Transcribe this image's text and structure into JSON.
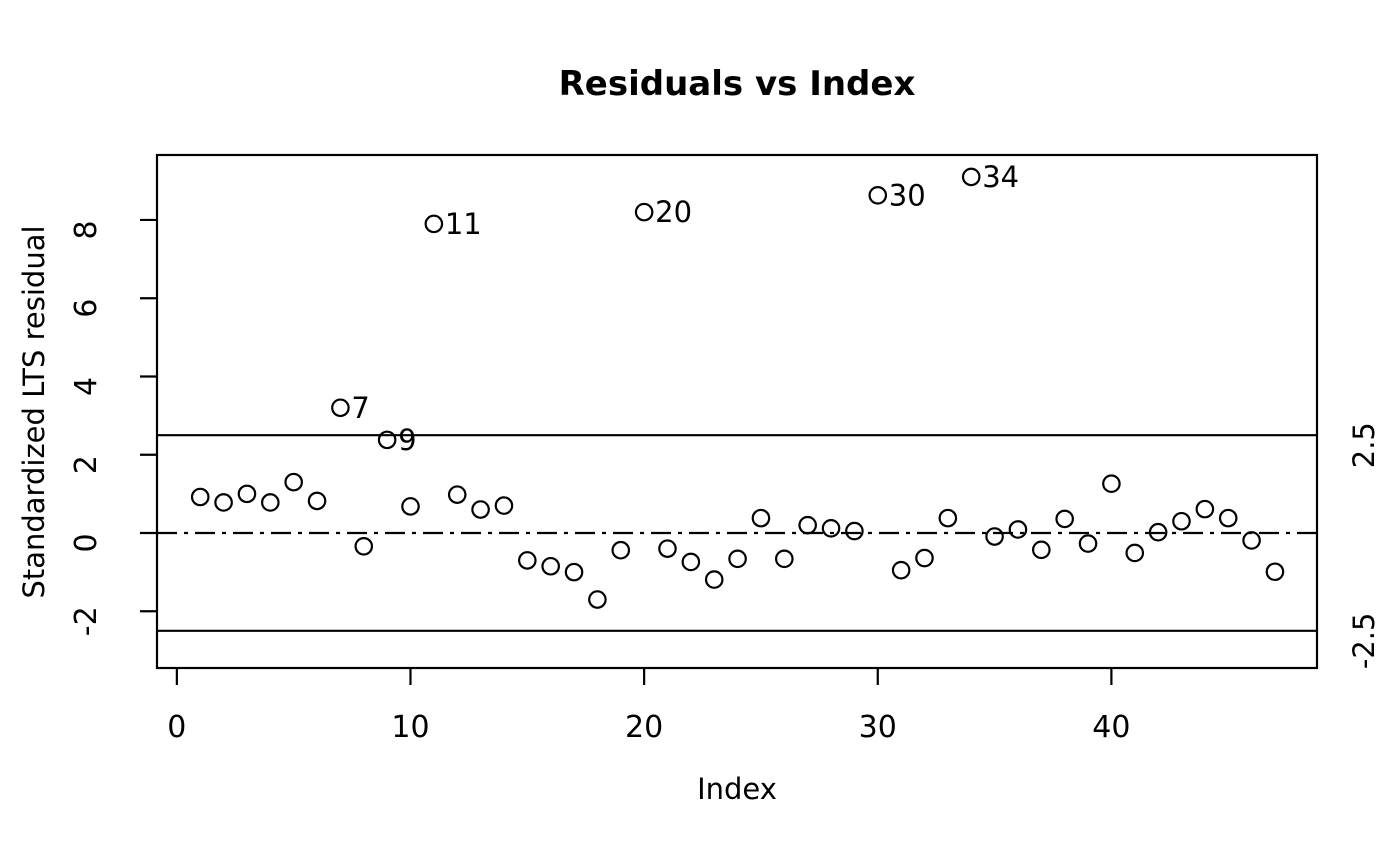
{
  "chart_data": {
    "type": "scatter",
    "title": "Residuals vs Index",
    "xlabel": "Index",
    "ylabel": "Standardized LTS residual",
    "x_start_index": 1,
    "values": [
      0.92,
      0.78,
      1.0,
      0.78,
      1.3,
      0.82,
      3.2,
      -0.34,
      2.38,
      0.68,
      7.9,
      0.98,
      0.6,
      0.7,
      -0.7,
      -0.85,
      -1.0,
      -1.7,
      -0.44,
      8.2,
      -0.4,
      -0.74,
      -1.19,
      -0.66,
      0.38,
      -0.66,
      0.2,
      0.12,
      0.05,
      8.63,
      -0.95,
      -0.64,
      0.38,
      9.1,
      -0.09,
      0.09,
      -0.43,
      0.36,
      -0.27,
      1.26,
      -0.51,
      0.02,
      0.3,
      0.61,
      0.38,
      -0.19,
      -0.99
    ],
    "labeled_points": [
      {
        "index": 7,
        "label": "7"
      },
      {
        "index": 9,
        "label": "9"
      },
      {
        "index": 11,
        "label": "11"
      },
      {
        "index": 20,
        "label": "20"
      },
      {
        "index": 30,
        "label": "30"
      },
      {
        "index": 34,
        "label": "34"
      }
    ],
    "xticks": [
      0,
      10,
      20,
      30,
      40
    ],
    "yticks": [
      -2,
      0,
      2,
      4,
      6,
      8
    ],
    "xlim": [
      -0.85,
      48.8
    ],
    "ylim": [
      -3.45,
      9.66
    ],
    "threshold_lines_solid": [
      2.5,
      -2.5
    ],
    "zero_line_dashdot": 0,
    "right_axis_labels": [
      {
        "text": "2.5",
        "at": 2.5
      },
      {
        "text": "-2.5",
        "at": -2.5
      }
    ],
    "marker": "open-circle",
    "grid": "off",
    "legend": "none",
    "colors": {
      "foreground": "#000000",
      "background": "#ffffff"
    }
  }
}
